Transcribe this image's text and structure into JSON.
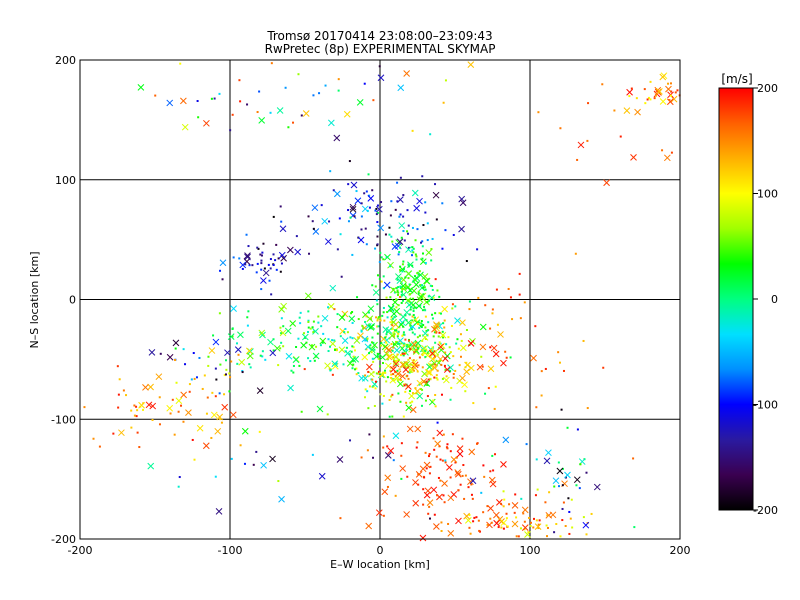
{
  "chart_data": {
    "type": "scatter",
    "title": "Tromsø 20170414 23:08:00–23:09:43",
    "subtitle": "RwPretec (8p) EXPERIMENTAL SKYMAP",
    "xlabel": "E–W location [km]",
    "ylabel": "N–S location [km]",
    "xlim": [
      -200,
      200
    ],
    "ylim": [
      -200,
      200
    ],
    "xticks": [
      -200,
      -100,
      0,
      100,
      200
    ],
    "yticks": [
      -200,
      -100,
      0,
      100,
      200
    ],
    "grid": true,
    "colorbar": {
      "label": "[m/s]",
      "min": -200,
      "max": 200,
      "ticks": [
        -200,
        -100,
        0,
        100,
        200
      ],
      "colormap": [
        "#000000",
        "#3a0050",
        "#2a1aa0",
        "#0000ff",
        "#0090ff",
        "#00e0ff",
        "#00ff80",
        "#00ff00",
        "#a0ff00",
        "#ffff00",
        "#ffb000",
        "#ff6000",
        "#ff0000"
      ]
    },
    "marker_legend": [
      {
        "marker": "x",
        "note": "cross markers"
      },
      {
        "marker": "dot",
        "note": "small point markers"
      }
    ],
    "clusters": [
      {
        "cx": 15,
        "cy": -40,
        "sx": 22,
        "sy": 22,
        "n": 340,
        "vmin": -30,
        "vmax": 140
      },
      {
        "cx": 18,
        "cy": 10,
        "sx": 10,
        "sy": 22,
        "n": 160,
        "vmin": -10,
        "vmax": 60
      },
      {
        "cx": -40,
        "cy": -30,
        "sx": 30,
        "sy": 14,
        "n": 140,
        "vmin": -40,
        "vmax": 80
      },
      {
        "cx": 25,
        "cy": -60,
        "sx": 20,
        "sy": 12,
        "n": 110,
        "vmin": 80,
        "vmax": 200
      },
      {
        "cx": 5,
        "cy": 55,
        "sx": 22,
        "sy": 18,
        "n": 80,
        "vmin": -200,
        "vmax": 20
      },
      {
        "cx": -75,
        "cy": 30,
        "sx": 12,
        "sy": 10,
        "n": 50,
        "vmin": -200,
        "vmax": -60
      },
      {
        "cx": -10,
        "cy": 80,
        "sx": 25,
        "sy": 12,
        "n": 45,
        "vmin": -200,
        "vmax": -40
      },
      {
        "cx": -50,
        "cy": 170,
        "sx": 60,
        "sy": 18,
        "n": 55,
        "vmin": -200,
        "vmax": 200
      },
      {
        "cx": 185,
        "cy": 170,
        "sx": 8,
        "sy": 8,
        "n": 35,
        "vmin": 100,
        "vmax": 200
      },
      {
        "cx": -150,
        "cy": -95,
        "sx": 25,
        "sy": 15,
        "n": 60,
        "vmin": 80,
        "vmax": 200
      },
      {
        "cx": 40,
        "cy": -145,
        "sx": 20,
        "sy": 25,
        "n": 110,
        "vmin": 150,
        "vmax": 200
      },
      {
        "cx": 95,
        "cy": -185,
        "sx": 25,
        "sy": 10,
        "n": 90,
        "vmin": 80,
        "vmax": 200
      },
      {
        "cx": -110,
        "cy": -55,
        "sx": 20,
        "sy": 15,
        "n": 50,
        "vmin": -200,
        "vmax": 150
      },
      {
        "cx": 75,
        "cy": -30,
        "sx": 35,
        "sy": 25,
        "n": 60,
        "vmin": 120,
        "vmax": 200
      },
      {
        "cx": 150,
        "cy": 130,
        "sx": 25,
        "sy": 20,
        "n": 15,
        "vmin": 140,
        "vmax": 200
      },
      {
        "cx": 0,
        "cy": -120,
        "sx": 60,
        "sy": 30,
        "n": 40,
        "vmin": -200,
        "vmax": 200
      },
      {
        "cx": 120,
        "cy": -160,
        "sx": 15,
        "sy": 30,
        "n": 35,
        "vmin": -200,
        "vmax": 200
      },
      {
        "cx": -120,
        "cy": -150,
        "sx": 40,
        "sy": 20,
        "n": 10,
        "vmin": -200,
        "vmax": 0
      }
    ]
  }
}
